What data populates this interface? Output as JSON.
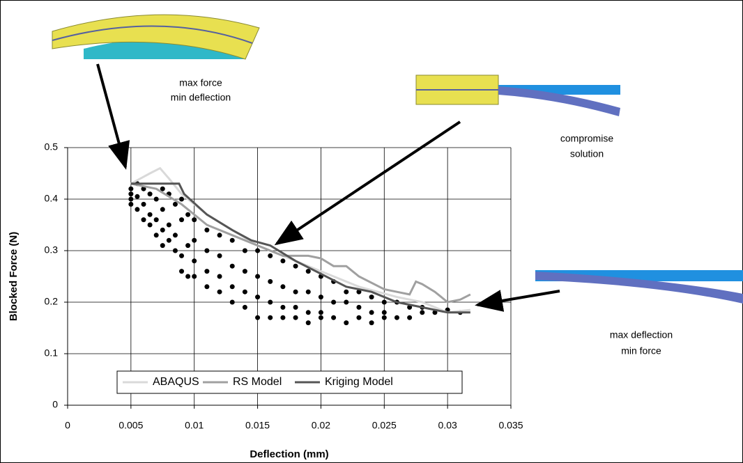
{
  "chart_data": {
    "type": "scatter-lines",
    "x_label": "Deflection (mm)",
    "y_label": "Blocked Force (N)",
    "xlim": [
      0,
      0.035
    ],
    "xticks": [
      0,
      0.005,
      0.01,
      0.015,
      0.02,
      0.025,
      0.03,
      0.035
    ],
    "ylim": [
      0,
      0.5
    ],
    "yticks": [
      0,
      0.1,
      0.2,
      0.3,
      0.4,
      0.5
    ],
    "grid": true,
    "points": {
      "color": "#000000",
      "x": [
        0.005,
        0.005,
        0.005,
        0.005,
        0.0055,
        0.0055,
        0.0055,
        0.006,
        0.006,
        0.006,
        0.0065,
        0.0065,
        0.0065,
        0.007,
        0.007,
        0.007,
        0.0075,
        0.0075,
        0.0075,
        0.0075,
        0.008,
        0.008,
        0.008,
        0.0085,
        0.0085,
        0.0085,
        0.009,
        0.009,
        0.009,
        0.009,
        0.0095,
        0.0095,
        0.0095,
        0.01,
        0.01,
        0.01,
        0.01,
        0.011,
        0.011,
        0.011,
        0.011,
        0.012,
        0.012,
        0.012,
        0.012,
        0.013,
        0.013,
        0.013,
        0.013,
        0.014,
        0.014,
        0.014,
        0.014,
        0.015,
        0.015,
        0.015,
        0.015,
        0.016,
        0.016,
        0.016,
        0.016,
        0.017,
        0.017,
        0.017,
        0.017,
        0.018,
        0.018,
        0.018,
        0.018,
        0.019,
        0.019,
        0.019,
        0.019,
        0.02,
        0.02,
        0.02,
        0.02,
        0.021,
        0.021,
        0.021,
        0.022,
        0.022,
        0.022,
        0.023,
        0.023,
        0.023,
        0.024,
        0.024,
        0.024,
        0.025,
        0.025,
        0.025,
        0.026,
        0.026,
        0.027,
        0.027,
        0.028,
        0.028,
        0.029,
        0.03,
        0.031
      ],
      "y": [
        0.42,
        0.41,
        0.39,
        0.4,
        0.43,
        0.38,
        0.405,
        0.42,
        0.39,
        0.36,
        0.41,
        0.37,
        0.35,
        0.4,
        0.36,
        0.33,
        0.42,
        0.38,
        0.34,
        0.31,
        0.41,
        0.35,
        0.32,
        0.39,
        0.33,
        0.3,
        0.4,
        0.36,
        0.29,
        0.26,
        0.37,
        0.31,
        0.25,
        0.36,
        0.32,
        0.28,
        0.25,
        0.34,
        0.3,
        0.26,
        0.23,
        0.33,
        0.29,
        0.25,
        0.22,
        0.32,
        0.27,
        0.23,
        0.2,
        0.3,
        0.26,
        0.22,
        0.19,
        0.3,
        0.25,
        0.21,
        0.17,
        0.29,
        0.24,
        0.2,
        0.17,
        0.28,
        0.23,
        0.19,
        0.17,
        0.27,
        0.22,
        0.19,
        0.17,
        0.26,
        0.22,
        0.18,
        0.16,
        0.25,
        0.21,
        0.18,
        0.17,
        0.24,
        0.2,
        0.17,
        0.22,
        0.2,
        0.16,
        0.22,
        0.19,
        0.17,
        0.21,
        0.18,
        0.16,
        0.2,
        0.18,
        0.17,
        0.2,
        0.17,
        0.19,
        0.17,
        0.19,
        0.18,
        0.18,
        0.185,
        0.18
      ]
    },
    "series": [
      {
        "name": "ABAQUS",
        "color": "#d9d9d9",
        "x": [
          0.005,
          0.0065,
          0.0073,
          0.008,
          0.009,
          0.011,
          0.013,
          0.015,
          0.017,
          0.02,
          0.023,
          0.026,
          0.028,
          0.03,
          0.0318
        ],
        "values": [
          0.43,
          0.45,
          0.46,
          0.44,
          0.41,
          0.37,
          0.34,
          0.31,
          0.29,
          0.26,
          0.23,
          0.21,
          0.2,
          0.18,
          0.185
        ]
      },
      {
        "name": "RS Model",
        "color": "#a0a0a0",
        "x": [
          0.005,
          0.007,
          0.009,
          0.011,
          0.013,
          0.015,
          0.017,
          0.019,
          0.02,
          0.021,
          0.022,
          0.023,
          0.025,
          0.026,
          0.027,
          0.0275,
          0.028,
          0.029,
          0.03,
          0.031,
          0.0318
        ],
        "values": [
          0.43,
          0.42,
          0.39,
          0.35,
          0.33,
          0.31,
          0.29,
          0.29,
          0.285,
          0.27,
          0.27,
          0.25,
          0.225,
          0.22,
          0.215,
          0.24,
          0.235,
          0.22,
          0.2,
          0.205,
          0.215
        ]
      },
      {
        "name": "Kriging Model",
        "color": "#555555",
        "x": [
          0.005,
          0.0088,
          0.0092,
          0.011,
          0.013,
          0.0145,
          0.016,
          0.018,
          0.02,
          0.022,
          0.024,
          0.026,
          0.028,
          0.03,
          0.0318
        ],
        "values": [
          0.43,
          0.43,
          0.41,
          0.37,
          0.34,
          0.32,
          0.31,
          0.28,
          0.255,
          0.23,
          0.22,
          0.2,
          0.19,
          0.18,
          0.18
        ]
      }
    ],
    "annotations": [
      {
        "lines": [
          "max force",
          "min deflection"
        ]
      },
      {
        "lines": [
          "compromise",
          "solution"
        ]
      },
      {
        "lines": [
          "max deflection",
          "min force"
        ]
      }
    ]
  }
}
